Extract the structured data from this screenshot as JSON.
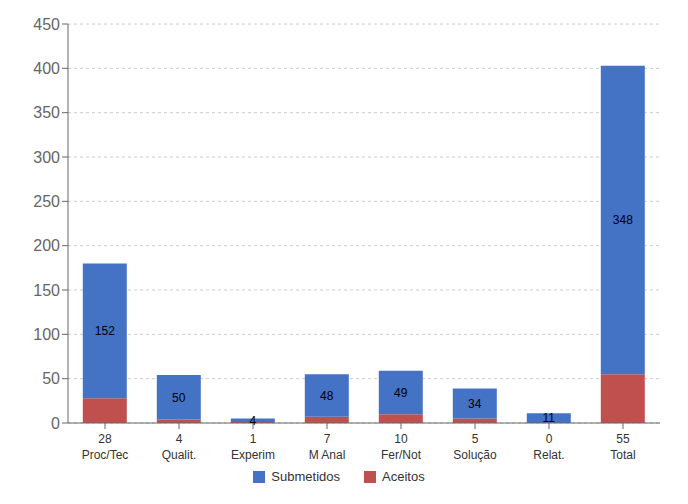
{
  "chart_data": {
    "type": "bar",
    "categories": [
      "Proc/Tec",
      "Qualit.",
      "Experim",
      "M Anal",
      "Fer/Not",
      "Solução",
      "Relat.",
      "Total"
    ],
    "series": [
      {
        "name": "Aceitos",
        "color": "#C0504D",
        "values": [
          28,
          4,
          1,
          7,
          10,
          5,
          0,
          55
        ]
      },
      {
        "name": "Submetidos",
        "color": "#4472C4",
        "values": [
          152,
          50,
          4,
          48,
          49,
          34,
          11,
          348
        ]
      }
    ],
    "stacked": true,
    "data_labels": true,
    "ylim": [
      0,
      450
    ],
    "yticks": [
      0,
      50,
      100,
      150,
      200,
      250,
      300,
      350,
      400,
      450
    ],
    "grid": true,
    "legend": "bottom"
  }
}
